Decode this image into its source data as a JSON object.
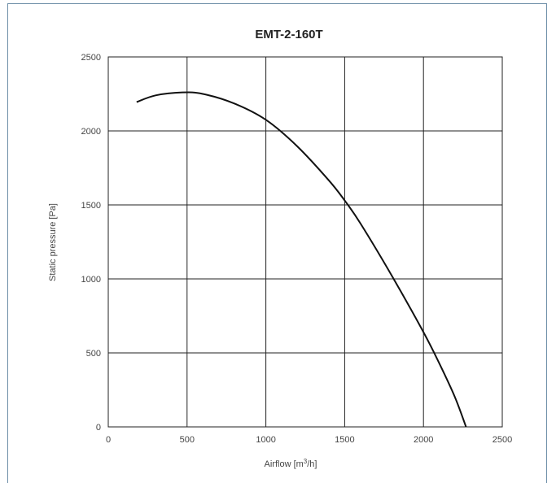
{
  "chart_data": {
    "type": "line",
    "title": "EMT-2-160T",
    "xlabel_main": "Airflow [m",
    "xlabel_sup": "3",
    "xlabel_tail": "/h]",
    "ylabel": "Static pressure [Pa]",
    "xlim": [
      0,
      2500
    ],
    "ylim": [
      0,
      2500
    ],
    "xticks": [
      "0",
      "500",
      "1000",
      "1500",
      "2000",
      "2500"
    ],
    "yticks": [
      "0",
      "500",
      "1000",
      "1500",
      "2000",
      "2500"
    ],
    "grid": true,
    "series": [
      {
        "color": "#111111",
        "x": [
          180,
          300,
          470,
          600,
          800,
          1000,
          1200,
          1400,
          1500,
          1600,
          1800,
          2000,
          2100,
          2200,
          2270
        ],
        "y": [
          2195,
          2240,
          2260,
          2250,
          2185,
          2075,
          1895,
          1665,
          1530,
          1375,
          1020,
          640,
          430,
          200,
          0
        ]
      }
    ]
  }
}
